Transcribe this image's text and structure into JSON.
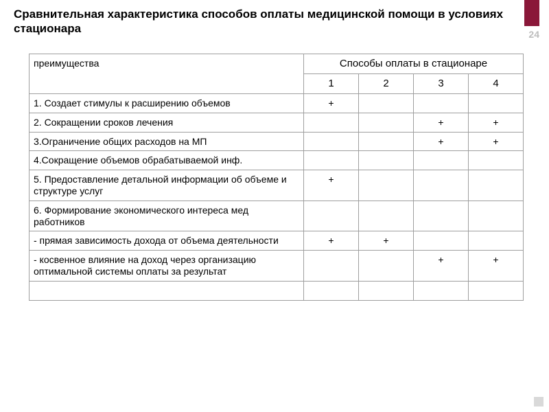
{
  "page": {
    "title": "Сравнительная характеристика способов оплаты медицинской помощи в условиях стационара",
    "number": "24",
    "accent_color": "#8a1739"
  },
  "table": {
    "type": "table",
    "header": {
      "advantages": "преимущества",
      "methods_group": "Способы оплаты в стационаре",
      "cols": [
        "1",
        "2",
        "3",
        "4"
      ]
    },
    "mark": "+",
    "rows": [
      {
        "label": "1. Создает стимулы к расширению объемов",
        "v": [
          "+",
          "",
          "",
          ""
        ]
      },
      {
        "label": "2. Сокращении сроков лечения",
        "v": [
          "",
          "",
          "+",
          "+"
        ]
      },
      {
        "label": "3.Ограничение общих расходов на МП",
        "v": [
          "",
          "",
          "+",
          "+"
        ]
      },
      {
        "label": "4.Сокращение объемов обрабатываемой инф.",
        "v": [
          "",
          "",
          "",
          ""
        ]
      },
      {
        "label": "5. Предоставление детальной информации об объеме и структуре услуг",
        "v": [
          "+",
          "",
          "",
          ""
        ]
      },
      {
        "label": "6. Формирование экономического  интереса мед работников",
        "v": [
          "",
          "",
          "",
          ""
        ]
      },
      {
        "label": "  - прямая зависимость дохода от объема деятельности",
        "v": [
          "+",
          "+",
          "",
          ""
        ]
      },
      {
        "label": "- косвенное влияние на доход через организацию оптимальной системы оплаты за результат",
        "v": [
          "",
          "",
          "+",
          "+"
        ]
      },
      {
        "label": "",
        "v": [
          "",
          "",
          "",
          ""
        ]
      }
    ],
    "border_color": "#9e9e9e",
    "font_size_body": 14,
    "font_size_header": 15
  }
}
